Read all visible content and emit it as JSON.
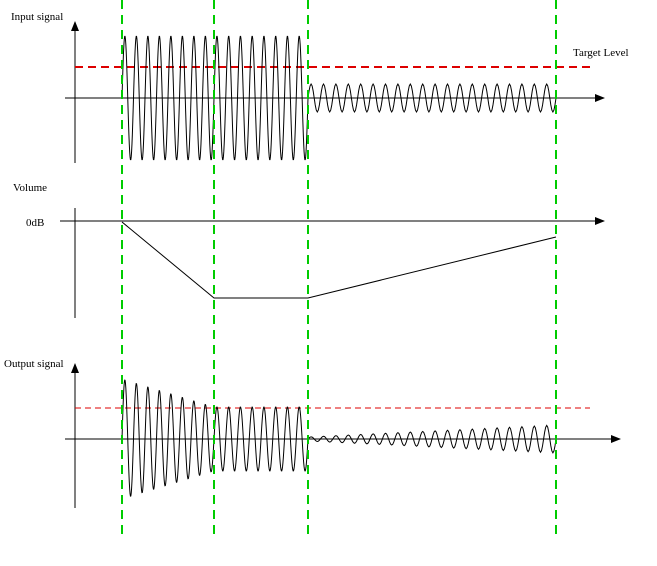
{
  "labels": {
    "input_signal": "Input signal",
    "target_level": "Target Level",
    "volume": "Volume",
    "zero_db": "0dB",
    "output_signal": "Output signal"
  },
  "colors": {
    "axis": "#000000",
    "waveform": "#000000",
    "target_line": "#dd0000",
    "phase_marker": "#00cc00",
    "background": "#ffffff"
  },
  "waveforms": {
    "cycles_per_phase_1": 8,
    "cycles_per_phase_2": 8,
    "cycles_per_phase_3": 20
  }
}
